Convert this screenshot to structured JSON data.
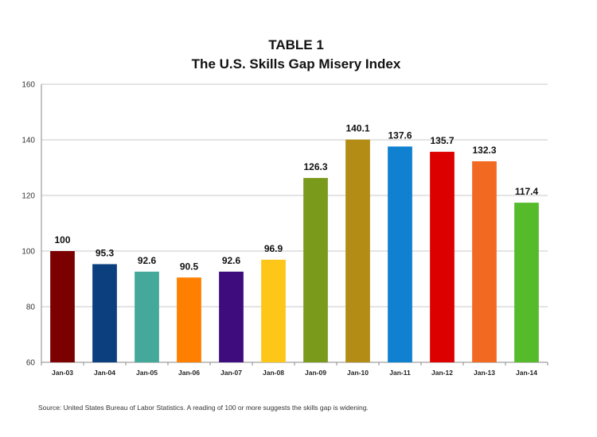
{
  "chart_data": {
    "type": "bar",
    "title": "TABLE 1",
    "subtitle": "The U.S. Skills Gap Misery Index",
    "categories": [
      "Jan-03",
      "Jan-04",
      "Jan-05",
      "Jan-06",
      "Jan-07",
      "Jan-08",
      "Jan-09",
      "Jan-10",
      "Jan-11",
      "Jan-12",
      "Jan-13",
      "Jan-14"
    ],
    "values": [
      100,
      95.3,
      92.6,
      90.5,
      92.6,
      96.9,
      126.3,
      140.1,
      137.6,
      135.7,
      132.3,
      117.4
    ],
    "value_labels": [
      "100",
      "95.3",
      "92.6",
      "90.5",
      "92.6",
      "96.9",
      "126.3",
      "140.1",
      "137.6",
      "135.7",
      "132.3",
      "117.4"
    ],
    "colors": [
      "#7b0000",
      "#0b3f7d",
      "#44a99a",
      "#ff7f00",
      "#3e0c7d",
      "#ffc61a",
      "#7a9a1c",
      "#b28c14",
      "#1080d0",
      "#dd0000",
      "#f26a22",
      "#55bb2b"
    ],
    "ylim": [
      60,
      160
    ],
    "yticks": [
      60,
      80,
      100,
      120,
      140,
      160
    ],
    "xlabel": "",
    "ylabel": "",
    "grid": true,
    "legend": "none",
    "source_note": "Source: United States Bureau of Labor Statistics. A reading of 100 or more suggests the skills gap is widening."
  }
}
